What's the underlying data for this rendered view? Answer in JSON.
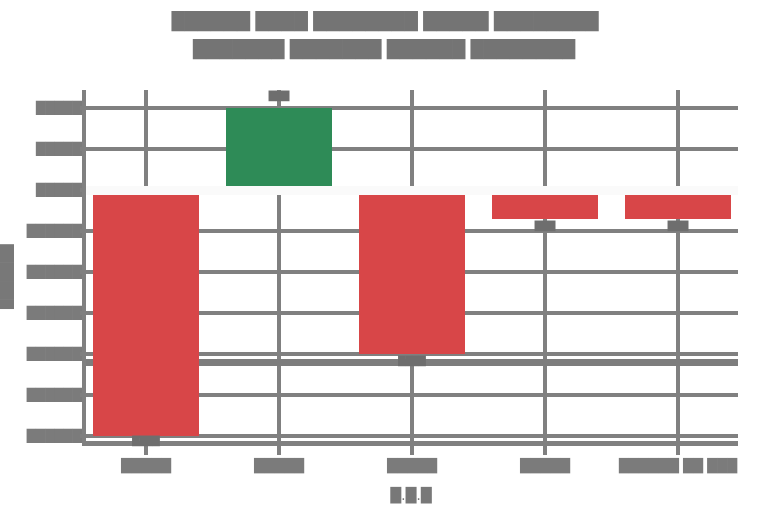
{
  "figure": {
    "note": "Source screenshot text is blurred and illegible; block glyphs reproduce the visible gray text blobs.",
    "title_line1": "██████ ████ ████████ █████ ████████",
    "title_line2": "███████ ███████ ██████ ████████",
    "ylabel_blob": "███████",
    "xlabel_blob": "█.█.█"
  },
  "chart_data": {
    "type": "bar",
    "title": "[illegible two-line gray title]",
    "xlabel": "[illegible, resembles 'i.i.d.' pattern]",
    "ylabel": "[illegible rotated label]",
    "categories": [
      "[illegible]",
      "[illegible]",
      "[illegible]",
      "[illegible]",
      "[illegible, longer multi-word]"
    ],
    "category_blobs": [
      "█████",
      "█████",
      "█████",
      "█████",
      "██████ ██ ███"
    ],
    "values": [
      -6.0,
      2.0,
      -4.0,
      -0.7,
      -0.7
    ],
    "bar_colors": [
      "#d84648",
      "#2e8b57",
      "#d84648",
      "#d84648",
      "#d84648"
    ],
    "bar_value_label_blobs": [
      "████",
      "███",
      "████",
      "███",
      "███"
    ],
    "bar_value_label_side": [
      "end",
      "end",
      "end",
      "end",
      "end"
    ],
    "yticks": [
      2,
      1,
      0,
      -1,
      -2,
      -3,
      -4,
      -5,
      -6
    ],
    "ytick_blobs": [
      "█████",
      "█████",
      "█████",
      "██████",
      "██████",
      "██████",
      "██████",
      "██████",
      "██████"
    ],
    "ylim": [
      -6.9,
      2.9
    ],
    "grid": true,
    "gridline_color": "#808080",
    "zero_line": {
      "value": 0,
      "color": "#fafafa"
    },
    "reference_line": {
      "value": -4.2,
      "color": "#7d7d7d"
    },
    "legend": null
  },
  "colors": {
    "negative_bar": "#d84648",
    "positive_bar": "#2e8b57",
    "grid": "#808080",
    "text": "#787878",
    "background": "#ffffff"
  }
}
